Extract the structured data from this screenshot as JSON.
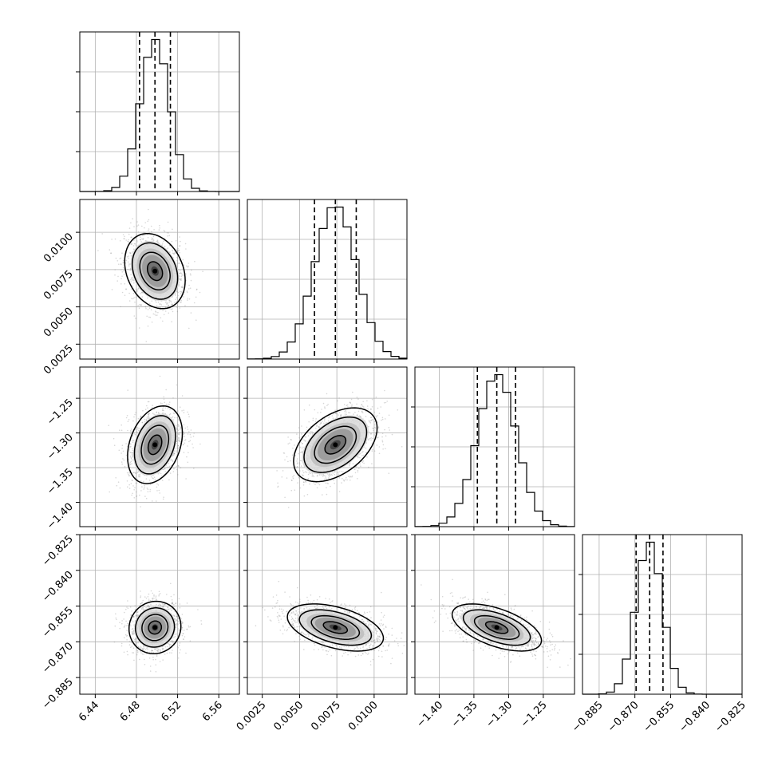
{
  "chart_data": {
    "type": "corner",
    "grid": true,
    "parameters": [
      {
        "mean": 6.498,
        "std": 0.014,
        "range": [
          6.425,
          6.58
        ],
        "ticks": [
          6.44,
          6.48,
          6.52,
          6.56
        ],
        "tick_labels": [
          "6.44",
          "6.48",
          "6.52",
          "6.56"
        ],
        "quantiles": [
          6.483,
          6.498,
          6.513
        ]
      },
      {
        "mean": 0.0074,
        "std": 0.0014,
        "range": [
          0.0015,
          0.0122
        ],
        "ticks": [
          0.0025,
          0.005,
          0.0075,
          0.01
        ],
        "tick_labels": [
          "0.0025",
          "0.0050",
          "0.0075",
          "0.0100"
        ],
        "quantiles": [
          0.006,
          0.0074,
          0.0088
        ]
      },
      {
        "mean": -1.317,
        "std": 0.028,
        "range": [
          -1.435,
          -1.205
        ],
        "ticks": [
          -1.4,
          -1.35,
          -1.3,
          -1.25
        ],
        "tick_labels": [
          "−1.40",
          "−1.35",
          "−1.30",
          "−1.25"
        ],
        "quantiles": [
          -1.345,
          -1.317,
          -1.29
        ]
      },
      {
        "mean": -0.864,
        "std": 0.0055,
        "range": [
          -0.892,
          -0.825
        ],
        "ticks": [
          -0.885,
          -0.87,
          -0.855,
          -0.84,
          -0.825
        ],
        "tick_labels": [
          "−0.885",
          "−0.870",
          "−0.855",
          "−0.840",
          "−0.825"
        ],
        "quantiles": [
          -0.8695,
          -0.8638,
          -0.8582
        ]
      }
    ],
    "correlations": [
      [
        1,
        -0.25,
        0.3,
        0.05
      ],
      [
        -0.25,
        1,
        0.45,
        -0.45
      ],
      [
        0.3,
        0.45,
        1,
        -0.55
      ],
      [
        0.05,
        -0.45,
        -0.55,
        1
      ]
    ],
    "hist_bins": 20,
    "contour_levels_sigma": [
      0.5,
      1.0,
      1.5,
      2.0
    ],
    "contour_scale": [
      [
        [
          0,
          0
        ],
        [
          0,
          0
        ],
        [
          0,
          0
        ],
        [
          0,
          0
        ]
      ],
      [
        [
          1.05,
          0.9
        ],
        [
          0,
          0
        ],
        [
          0,
          0
        ],
        [
          0,
          0
        ]
      ],
      [
        [
          0.95,
          1.0
        ],
        [
          1.0,
          0.95
        ],
        [
          0,
          0
        ],
        [
          0,
          0
        ]
      ],
      [
        [
          0.9,
          1.0
        ],
        [
          1.15,
          0.9
        ],
        [
          1.15,
          0.9
        ],
        [
          0,
          0
        ]
      ]
    ],
    "colors": {
      "data": "#000000",
      "grid": "#b0b0b0",
      "points": "#8c8c8c"
    }
  }
}
